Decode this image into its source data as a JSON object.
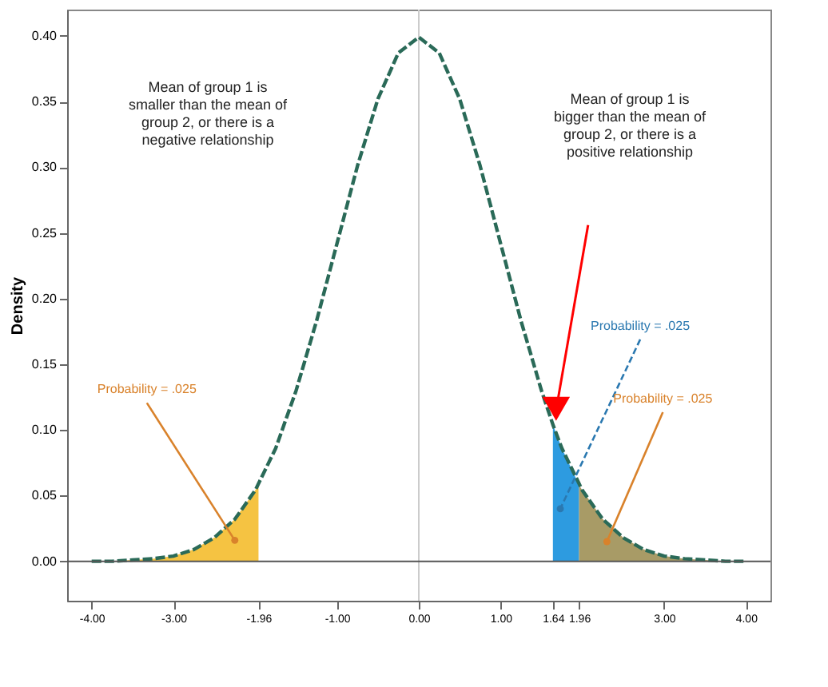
{
  "chart_data": {
    "type": "line",
    "ylabel": "Density",
    "xlim": [
      -4.3,
      4.3
    ],
    "ylim": [
      -0.03,
      0.42
    ],
    "xticks": [
      {
        "value": -4,
        "label": "-4.00"
      },
      {
        "value": -3,
        "label": "-3.00"
      },
      -1.96,
      {
        "value": -1,
        "label": "-1.00"
      },
      {
        "value": 0,
        "label": "0.00"
      },
      {
        "value": 1,
        "label": "1.00"
      },
      1.64,
      1.96,
      {
        "value": 3,
        "label": "3.00"
      },
      {
        "value": 4,
        "label": "4.00"
      }
    ],
    "yticks": [
      {
        "value": 0,
        "label": "0.00"
      },
      0.05,
      {
        "value": 0.1,
        "label": "0.10"
      },
      0.15,
      {
        "value": 0.2,
        "label": "0.20"
      },
      0.25,
      {
        "value": 0.3,
        "label": "0.30"
      },
      0.35,
      {
        "value": 0.4,
        "label": "0.40"
      }
    ],
    "grid": false,
    "line_style": "dashed",
    "marker": "none",
    "series": [
      {
        "type": "area",
        "color": "#f5c342",
        "x": [
          -4,
          -3.75,
          -3.5,
          -3.25,
          -3,
          -2.75,
          -2.5,
          -2.25,
          -2,
          -1.96
        ],
        "values": [
          0.0,
          0.0,
          0.001,
          0.002,
          0.004,
          0.009,
          0.018,
          0.032,
          0.054,
          0.058
        ]
      },
      {
        "type": "area",
        "color": "#2d9be0",
        "x": [
          1.64,
          1.75,
          1.96
        ],
        "values": [
          0.104,
          0.086,
          0.058
        ]
      },
      {
        "type": "area",
        "color": "#a89b66",
        "x": [
          1.96,
          2,
          2.25,
          2.5,
          2.75,
          3,
          3.25,
          3.5,
          3.75,
          4
        ],
        "values": [
          0.058,
          0.054,
          0.032,
          0.018,
          0.009,
          0.004,
          0.002,
          0.001,
          0.0,
          0.0
        ]
      },
      {
        "color": "#2a6a58",
        "x": [
          -4,
          -3.75,
          -3.5,
          -3.25,
          -3,
          -2.75,
          -2.5,
          -2.25,
          -2,
          -1.75,
          -1.5,
          -1.25,
          -1,
          -0.75,
          -0.5,
          -0.25,
          0,
          0.25,
          0.5,
          0.75,
          1,
          1.25,
          1.5,
          1.64,
          1.75,
          2,
          2.25,
          2.5,
          2.75,
          3,
          3.25,
          3.5,
          3.75,
          4
        ],
        "values": [
          0.0,
          0.0,
          0.001,
          0.002,
          0.004,
          0.009,
          0.018,
          0.032,
          0.054,
          0.086,
          0.13,
          0.183,
          0.242,
          0.301,
          0.352,
          0.387,
          0.399,
          0.387,
          0.352,
          0.301,
          0.242,
          0.183,
          0.13,
          0.104,
          0.086,
          0.054,
          0.032,
          0.018,
          0.009,
          0.004,
          0.002,
          0.001,
          0.0,
          0.0
        ]
      }
    ],
    "ref_lines": [
      {
        "axis": "y",
        "value": 0,
        "color": "#555555"
      },
      {
        "axis": "x",
        "value": 0,
        "color": "#cccccc"
      }
    ],
    "annotations": [
      "Mean of group 1 is smaller than the mean of group 2, or there is a negative relationship",
      "Mean of group 1 is bigger than the mean of group 2, or there is a positive relationship",
      {
        "text": "Probability = .025",
        "x": -2.25,
        "y": 0.016
      },
      {
        "text": "Probability = .025",
        "x": 1.73,
        "y": 0.04
      },
      {
        "text": "Probability = .025",
        "x": 2.3,
        "y": 0.015
      }
    ]
  }
}
